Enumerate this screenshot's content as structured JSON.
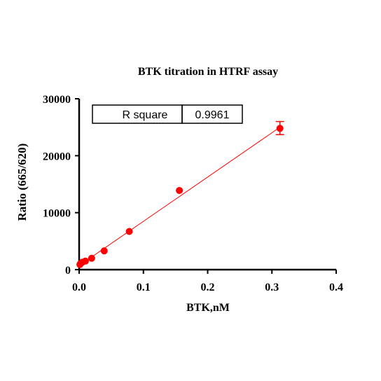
{
  "chart_data": {
    "type": "scatter",
    "title": "BTK titration in  HTRF assay",
    "xlabel": "BTK,nM",
    "ylabel": "Ratio (665/620)",
    "xlim": [
      0,
      0.4
    ],
    "ylim": [
      0,
      30000
    ],
    "x_ticks": [
      {
        "value": 0,
        "label": "0.0"
      },
      {
        "value": 0.1,
        "label": "0.1"
      },
      {
        "value": 0.2,
        "label": "0.2"
      },
      {
        "value": 0.3,
        "label": "0.3"
      },
      {
        "value": 0.4,
        "label": "0.4"
      }
    ],
    "y_ticks": [
      {
        "value": 0,
        "label": "0"
      },
      {
        "value": 10000,
        "label": "10000"
      },
      {
        "value": 20000,
        "label": "20000"
      },
      {
        "value": 30000,
        "label": "30000"
      }
    ],
    "series": [
      {
        "x": [
          0.0012,
          0.0024,
          0.0049,
          0.0098,
          0.0195,
          0.039,
          0.078,
          0.156,
          0.3125
        ],
        "y": [
          900,
          1100,
          1300,
          1500,
          2000,
          3300,
          6700,
          13900,
          24800
        ],
        "error_upper": [
          0,
          0,
          0,
          0,
          0,
          0,
          0,
          0,
          26000
        ],
        "error_lower": [
          0,
          0,
          0,
          0,
          0,
          0,
          0,
          0,
          23700
        ],
        "color": "#ff0000"
      }
    ],
    "fit_line": {
      "x": [
        0,
        0.3125
      ],
      "y": [
        700,
        25000
      ],
      "color": "#ff0000"
    },
    "stats_table": {
      "label": "R square",
      "value": "0.9961"
    },
    "grid": false
  }
}
